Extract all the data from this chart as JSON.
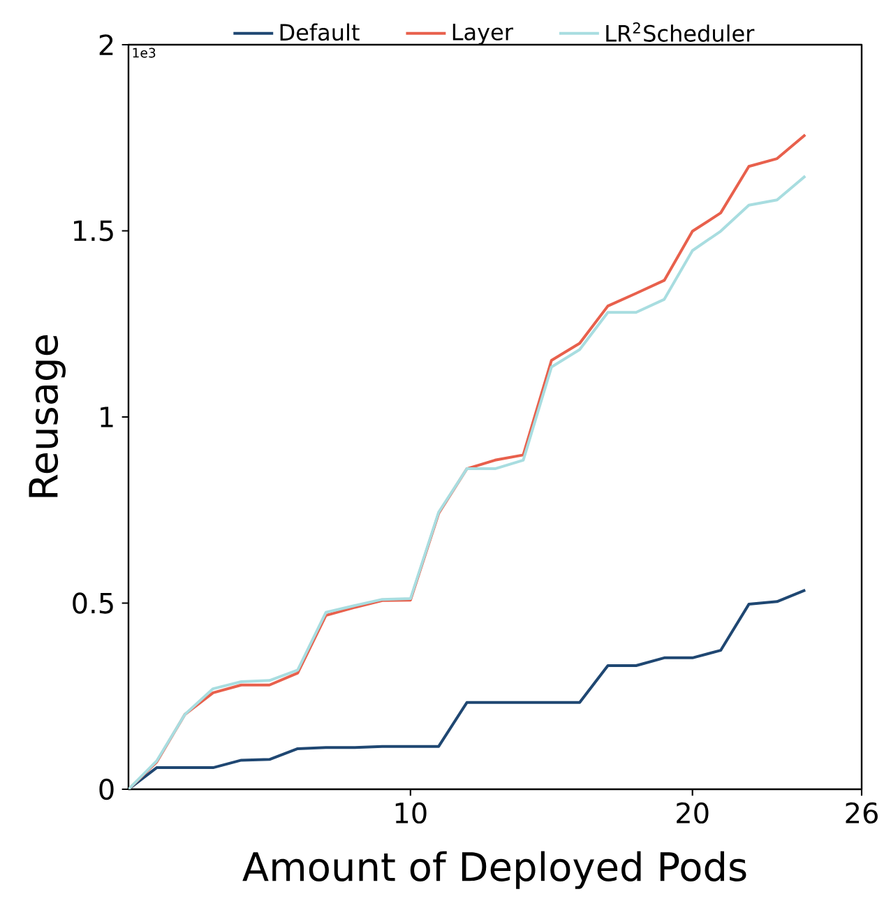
{
  "chart_data": {
    "type": "line",
    "xlabel": "Amount of Deployed Pods",
    "ylabel": "Reusage",
    "annotations": [
      "1e3"
    ],
    "x": [
      0,
      1,
      2,
      3,
      4,
      5,
      6,
      7,
      8,
      9,
      10,
      11,
      12,
      13,
      14,
      15,
      16,
      17,
      18,
      19,
      20,
      21,
      22,
      23,
      24
    ],
    "series": [
      {
        "name": "Default",
        "color": "#1f4772",
        "values": [
          0,
          0.058,
          0.058,
          0.058,
          0.078,
          0.08,
          0.109,
          0.112,
          0.112,
          0.115,
          0.115,
          0.115,
          0.233,
          0.233,
          0.233,
          0.233,
          0.233,
          0.332,
          0.332,
          0.353,
          0.353,
          0.373,
          0.497,
          0.504,
          0.535
        ]
      },
      {
        "name": "Layer",
        "color": "#e8604c",
        "values": [
          0,
          0.073,
          0.201,
          0.259,
          0.28,
          0.28,
          0.312,
          0.467,
          0.488,
          0.507,
          0.508,
          0.741,
          0.861,
          0.884,
          0.898,
          1.152,
          1.198,
          1.298,
          1.332,
          1.367,
          1.499,
          1.548,
          1.673,
          1.694,
          1.758
        ]
      },
      {
        "name": "LR$^{2}$Scheduler",
        "color": "#a8dde0",
        "values": [
          0,
          0.076,
          0.201,
          0.27,
          0.289,
          0.292,
          0.32,
          0.475,
          0.493,
          0.51,
          0.512,
          0.744,
          0.861,
          0.861,
          0.884,
          1.134,
          1.181,
          1.281,
          1.281,
          1.316,
          1.447,
          1.499,
          1.569,
          1.583,
          1.647
        ]
      }
    ],
    "xlim": [
      0,
      26
    ],
    "xticks": [
      10,
      20,
      26
    ],
    "ylim": [
      0,
      2
    ],
    "yticks": [
      0,
      0.5,
      1,
      1.5,
      2
    ],
    "legend": "top",
    "marker": "none",
    "line_style": "solid"
  }
}
